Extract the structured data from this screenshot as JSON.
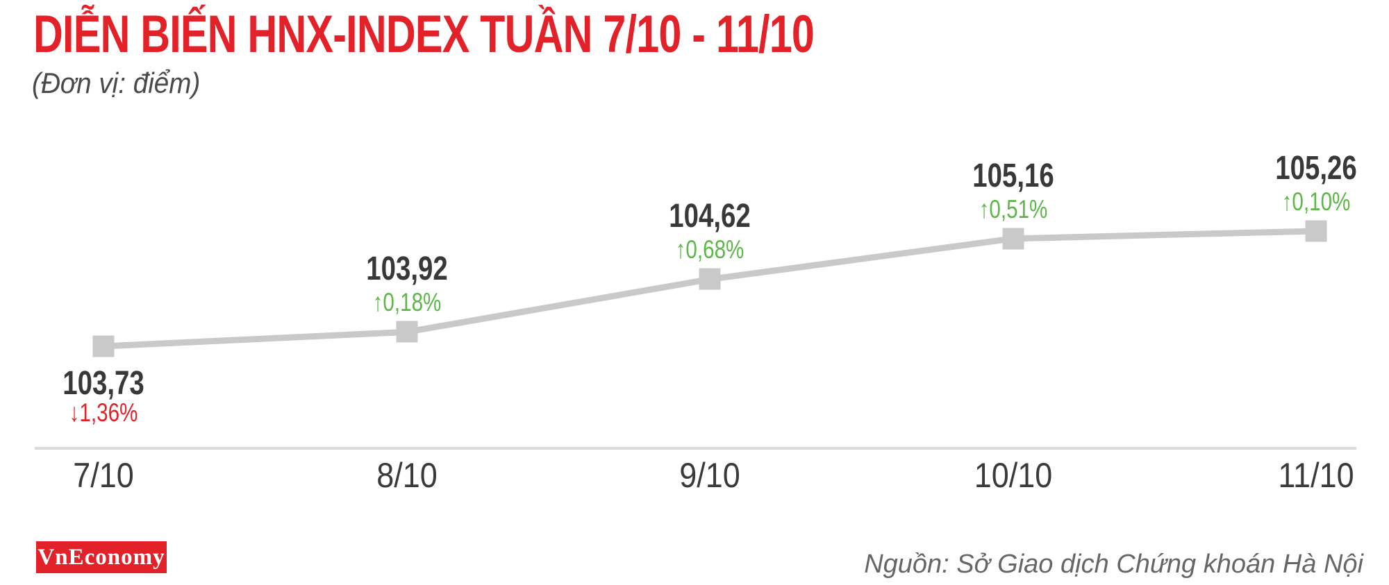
{
  "header": {
    "title": "DIỄN BIẾN HNX-INDEX TUẦN 7/10 - 11/10",
    "subtitle": "(Đơn vị: điểm)"
  },
  "chart_data": {
    "type": "line",
    "title": "DIỄN BIẾN HNX-INDEX TUẦN 7/10 - 11/10",
    "unit_label": "(Đơn vị: điểm)",
    "categories": [
      "7/10",
      "8/10",
      "9/10",
      "10/10",
      "11/10"
    ],
    "values": [
      103.73,
      103.92,
      104.62,
      105.16,
      105.26
    ],
    "value_labels": [
      "103,73",
      "103,92",
      "104,62",
      "105,16",
      "105,26"
    ],
    "changes_pct": [
      -1.36,
      0.18,
      0.68,
      0.51,
      0.1
    ],
    "change_labels": [
      "1,36%",
      "0,18%",
      "0,68%",
      "0,51%",
      "0,10%"
    ],
    "change_directions": [
      "down",
      "up",
      "up",
      "up",
      "up"
    ],
    "label_sides": [
      "below",
      "above",
      "above",
      "above",
      "above"
    ],
    "ylim": [
      103.3,
      106.2
    ],
    "grid": false,
    "legend": false,
    "marker_shape": "square",
    "colors": {
      "line": "#C9C9C9",
      "marker": "#C9C9C9",
      "up": "#5CB748",
      "down": "#E32128",
      "value_text": "#383838",
      "tick_text": "#3A3A3A",
      "axis_line": "#D9D9D9"
    },
    "arrows": {
      "up": "↑",
      "down": "↓"
    }
  },
  "footer": {
    "logo_text": "VnEconomy",
    "source": "Nguồn: Sở Giao dịch Chứng khoán Hà Nội"
  }
}
